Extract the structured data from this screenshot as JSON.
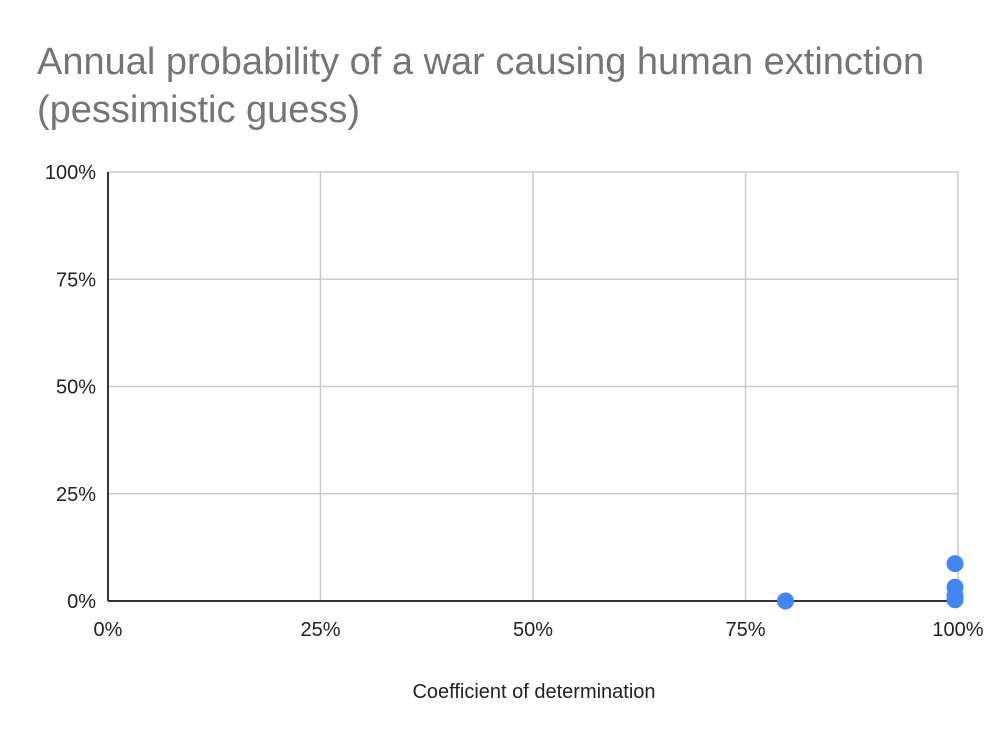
{
  "chart_data": {
    "type": "scatter",
    "title_lines": [
      "Annual probability of a war causing human extinction",
      "(pessimistic guess)"
    ],
    "xlabel": "Coefficient of determination",
    "ylabel": "",
    "xlim": [
      0,
      1
    ],
    "ylim": [
      0,
      1
    ],
    "x_ticks": [
      0,
      0.25,
      0.5,
      0.75,
      1
    ],
    "x_tick_labels": [
      "0%",
      "25%",
      "50%",
      "75%",
      "100%"
    ],
    "y_ticks": [
      0,
      0.25,
      0.5,
      0.75,
      1
    ],
    "y_tick_labels": [
      "0%",
      "25%",
      "50%",
      "75%",
      "100%"
    ],
    "grid": true,
    "legend": "none",
    "series": [
      {
        "color": "#4285f4",
        "points": [
          {
            "x": 0.797,
            "y": 0.0
          },
          {
            "x": 1.0,
            "y": 0.087
          },
          {
            "x": 1.0,
            "y": 0.032
          },
          {
            "x": 1.0,
            "y": 0.012
          },
          {
            "x": 1.0,
            "y": 0.003
          }
        ]
      }
    ]
  }
}
